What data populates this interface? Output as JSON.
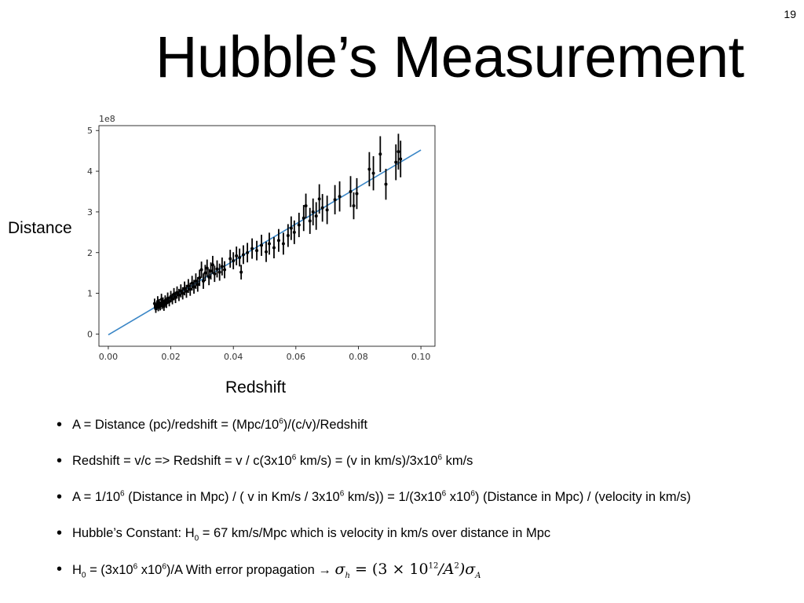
{
  "slide_number": "19",
  "title": "Hubble’s Measurement",
  "y_axis_label": "Distance",
  "x_axis_label": "Redshift",
  "bullets": [
    {
      "a": "A = Distance (pc)/redshift = (Mpc/10",
      "a_sup": "6",
      "b": ")/(c/v)/Redshift"
    },
    {
      "a": "Redshift = v/c => Redshift = v / c(3x10",
      "a_sup": "6",
      "b": " km/s) = (v in km/s)/3x10",
      "b_sup": "6",
      "c": "  km/s"
    },
    {
      "a": "A = 1/10",
      "a_sup": "6",
      "b": "  (Distance in Mpc) /  ( v in Km/s / 3x10",
      "b_sup": "6",
      "c": " km/s))  = 1/(3x10",
      "c_sup": "6",
      "d": " x10",
      "d_sup": "6",
      "e": ")  (Distance in Mpc) / (velocity in km/s)"
    },
    {
      "a": "Hubble’s Constant: H",
      "a_sub": "0",
      "b": " = 67 km/s/Mpc  which is velocity in km/s over distance in Mpc"
    },
    {
      "a": "H",
      "a_sub": "0",
      "b": " = (3x10",
      "b_sup": "6",
      "c": " x10",
      "c_sup": "6",
      "d": ")/A  With error propagation → ",
      "m1": "σ",
      "m1_sub": "h",
      "m2": " = (3 × 10",
      "m2_sup": "12",
      "m3": "/A",
      "m3_sup": "2",
      "m4": ")σ",
      "m4_sub": "A"
    }
  ],
  "chart_data": {
    "type": "scatter",
    "title": "",
    "xlabel": "Redshift",
    "ylabel": "Distance",
    "y_offset_label": "1e8",
    "xlim": [
      -0.003,
      0.1045
    ],
    "ylim": [
      -0.3,
      5.12
    ],
    "x_ticks": [
      0.0,
      0.02,
      0.04,
      0.06,
      0.08,
      0.1
    ],
    "x_tick_labels": [
      "0.00",
      "0.02",
      "0.04",
      "0.06",
      "0.08",
      "0.10"
    ],
    "y_ticks": [
      0,
      1,
      2,
      3,
      4,
      5
    ],
    "y_tick_labels": [
      "0",
      "1",
      "2",
      "3",
      "4",
      "5"
    ],
    "grid": false,
    "fit_line": {
      "x": [
        0.0,
        0.1
      ],
      "y": [
        -0.02,
        4.52
      ],
      "color": "#3a86c6"
    },
    "point_color": "#000000",
    "points": [
      {
        "x": 0.0148,
        "y": 0.75,
        "err": 0.12
      },
      {
        "x": 0.0152,
        "y": 0.62,
        "err": 0.1
      },
      {
        "x": 0.0155,
        "y": 0.7,
        "err": 0.11
      },
      {
        "x": 0.0158,
        "y": 0.8,
        "err": 0.13
      },
      {
        "x": 0.016,
        "y": 0.66,
        "err": 0.1
      },
      {
        "x": 0.0163,
        "y": 0.74,
        "err": 0.12
      },
      {
        "x": 0.0166,
        "y": 0.69,
        "err": 0.11
      },
      {
        "x": 0.017,
        "y": 0.85,
        "err": 0.14
      },
      {
        "x": 0.0172,
        "y": 0.72,
        "err": 0.11
      },
      {
        "x": 0.0175,
        "y": 0.78,
        "err": 0.12
      },
      {
        "x": 0.0178,
        "y": 0.68,
        "err": 0.11
      },
      {
        "x": 0.0182,
        "y": 0.82,
        "err": 0.13
      },
      {
        "x": 0.0186,
        "y": 0.76,
        "err": 0.12
      },
      {
        "x": 0.019,
        "y": 0.88,
        "err": 0.14
      },
      {
        "x": 0.0195,
        "y": 0.8,
        "err": 0.12
      },
      {
        "x": 0.02,
        "y": 0.92,
        "err": 0.14
      },
      {
        "x": 0.0205,
        "y": 0.86,
        "err": 0.13
      },
      {
        "x": 0.021,
        "y": 0.98,
        "err": 0.15
      },
      {
        "x": 0.0215,
        "y": 0.9,
        "err": 0.14
      },
      {
        "x": 0.022,
        "y": 1.02,
        "err": 0.15
      },
      {
        "x": 0.0226,
        "y": 0.96,
        "err": 0.15
      },
      {
        "x": 0.0232,
        "y": 1.06,
        "err": 0.16
      },
      {
        "x": 0.0238,
        "y": 1.0,
        "err": 0.15
      },
      {
        "x": 0.0244,
        "y": 1.12,
        "err": 0.17
      },
      {
        "x": 0.025,
        "y": 1.05,
        "err": 0.16
      },
      {
        "x": 0.0256,
        "y": 1.18,
        "err": 0.17
      },
      {
        "x": 0.0262,
        "y": 1.1,
        "err": 0.16
      },
      {
        "x": 0.0268,
        "y": 1.25,
        "err": 0.18
      },
      {
        "x": 0.0274,
        "y": 1.16,
        "err": 0.17
      },
      {
        "x": 0.028,
        "y": 1.3,
        "err": 0.19
      },
      {
        "x": 0.0286,
        "y": 1.22,
        "err": 0.18
      },
      {
        "x": 0.0292,
        "y": 1.38,
        "err": 0.2
      },
      {
        "x": 0.0298,
        "y": 1.58,
        "err": 0.2
      },
      {
        "x": 0.0304,
        "y": 1.3,
        "err": 0.19
      },
      {
        "x": 0.031,
        "y": 1.5,
        "err": 0.2
      },
      {
        "x": 0.0316,
        "y": 1.62,
        "err": 0.21
      },
      {
        "x": 0.0322,
        "y": 1.4,
        "err": 0.2
      },
      {
        "x": 0.0328,
        "y": 1.55,
        "err": 0.21
      },
      {
        "x": 0.0334,
        "y": 1.7,
        "err": 0.22
      },
      {
        "x": 0.034,
        "y": 1.48,
        "err": 0.2
      },
      {
        "x": 0.0348,
        "y": 1.6,
        "err": 0.21
      },
      {
        "x": 0.0356,
        "y": 1.52,
        "err": 0.21
      },
      {
        "x": 0.0364,
        "y": 1.66,
        "err": 0.22
      },
      {
        "x": 0.0372,
        "y": 1.58,
        "err": 0.21
      },
      {
        "x": 0.039,
        "y": 1.85,
        "err": 0.22
      },
      {
        "x": 0.04,
        "y": 1.8,
        "err": 0.21
      },
      {
        "x": 0.041,
        "y": 1.92,
        "err": 0.23
      },
      {
        "x": 0.042,
        "y": 1.88,
        "err": 0.22
      },
      {
        "x": 0.0425,
        "y": 1.52,
        "err": 0.18
      },
      {
        "x": 0.0432,
        "y": 1.95,
        "err": 0.23
      },
      {
        "x": 0.0445,
        "y": 2.0,
        "err": 0.24
      },
      {
        "x": 0.046,
        "y": 2.1,
        "err": 0.25
      },
      {
        "x": 0.0475,
        "y": 2.05,
        "err": 0.24
      },
      {
        "x": 0.049,
        "y": 2.18,
        "err": 0.26
      },
      {
        "x": 0.0505,
        "y": 2.02,
        "err": 0.25
      },
      {
        "x": 0.0515,
        "y": 2.22,
        "err": 0.27
      },
      {
        "x": 0.053,
        "y": 2.12,
        "err": 0.26
      },
      {
        "x": 0.0545,
        "y": 2.3,
        "err": 0.28
      },
      {
        "x": 0.056,
        "y": 2.22,
        "err": 0.27
      },
      {
        "x": 0.0575,
        "y": 2.42,
        "err": 0.28
      },
      {
        "x": 0.0585,
        "y": 2.6,
        "err": 0.29
      },
      {
        "x": 0.0595,
        "y": 2.5,
        "err": 0.29
      },
      {
        "x": 0.061,
        "y": 2.68,
        "err": 0.3
      },
      {
        "x": 0.0625,
        "y": 2.85,
        "err": 0.32
      },
      {
        "x": 0.0632,
        "y": 3.15,
        "err": 0.3
      },
      {
        "x": 0.0645,
        "y": 2.78,
        "err": 0.32
      },
      {
        "x": 0.0655,
        "y": 3.0,
        "err": 0.33
      },
      {
        "x": 0.0665,
        "y": 2.9,
        "err": 0.34
      },
      {
        "x": 0.0675,
        "y": 3.32,
        "err": 0.36
      },
      {
        "x": 0.0685,
        "y": 3.1,
        "err": 0.34
      },
      {
        "x": 0.07,
        "y": 3.05,
        "err": 0.35
      },
      {
        "x": 0.0725,
        "y": 3.3,
        "err": 0.36
      },
      {
        "x": 0.074,
        "y": 3.38,
        "err": 0.37
      },
      {
        "x": 0.0775,
        "y": 3.5,
        "err": 0.38
      },
      {
        "x": 0.0785,
        "y": 3.15,
        "err": 0.33
      },
      {
        "x": 0.0795,
        "y": 3.45,
        "err": 0.38
      },
      {
        "x": 0.0835,
        "y": 4.05,
        "err": 0.42
      },
      {
        "x": 0.0848,
        "y": 3.95,
        "err": 0.42
      },
      {
        "x": 0.087,
        "y": 4.42,
        "err": 0.44
      },
      {
        "x": 0.0888,
        "y": 3.68,
        "err": 0.38
      },
      {
        "x": 0.092,
        "y": 4.22,
        "err": 0.44
      },
      {
        "x": 0.0928,
        "y": 4.48,
        "err": 0.44
      },
      {
        "x": 0.0935,
        "y": 4.3,
        "err": 0.45
      }
    ]
  }
}
